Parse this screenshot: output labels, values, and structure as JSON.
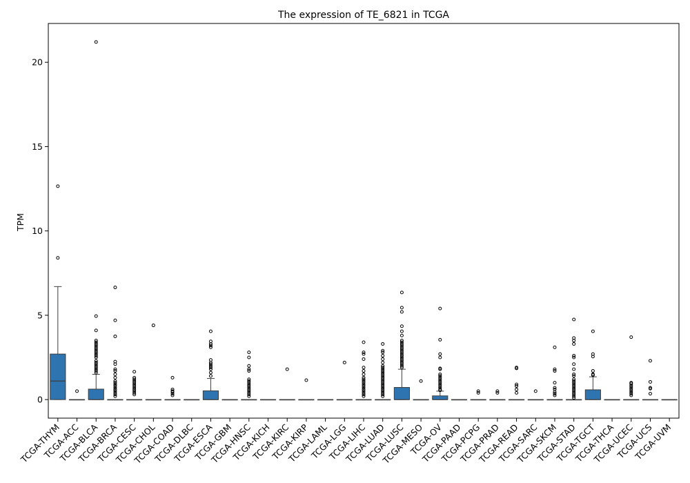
{
  "chart_data": {
    "type": "box",
    "title": "The expression of TE_6821 in TCGA",
    "xlabel": "",
    "ylabel": "TPM",
    "ylim": [
      -1.1,
      22.3
    ],
    "yticks": [
      0,
      5,
      10,
      15,
      20
    ],
    "grid": false,
    "legend": "none",
    "box_color": "#2e74b0",
    "categories": [
      "TCGA-THYM",
      "TCGA-ACC",
      "TCGA-BLCA",
      "TCGA-BRCA",
      "TCGA-CESC",
      "TCGA-CHOL",
      "TCGA-COAD",
      "TCGA-DLBC",
      "TCGA-ESCA",
      "TCGA-GBM",
      "TCGA-HNSC",
      "TCGA-KICH",
      "TCGA-KIRC",
      "TCGA-KIRP",
      "TCGA-LAML",
      "TCGA-LGG",
      "TCGA-LIHC",
      "TCGA-LUAD",
      "TCGA-LUSC",
      "TCGA-MESO",
      "TCGA-OV",
      "TCGA-PAAD",
      "TCGA-PCPG",
      "TCGA-PRAD",
      "TCGA-READ",
      "TCGA-SARC",
      "TCGA-SKCM",
      "TCGA-STAD",
      "TCGA-TGCT",
      "TCGA-THCA",
      "TCGA-UCEC",
      "TCGA-UCS",
      "TCGA-UVM"
    ],
    "boxes": [
      {
        "q1": 0,
        "median": 1.1,
        "q3": 2.7,
        "whislo": 0,
        "whishi": 6.7,
        "fliers": [
          8.4,
          12.65
        ]
      },
      {
        "q1": 0,
        "median": 0,
        "q3": 0,
        "whislo": 0,
        "whishi": 0,
        "fliers": [
          0.5
        ]
      },
      {
        "q1": 0,
        "median": 0,
        "q3": 0.62,
        "whislo": 0,
        "whishi": 1.5,
        "fliers": [
          1.6,
          1.7,
          1.8,
          1.9,
          2.0,
          2.1,
          2.2,
          2.3,
          2.5,
          2.6,
          2.7,
          2.8,
          2.9,
          3.0,
          3.1,
          3.2,
          3.3,
          3.4,
          3.5,
          4.1,
          4.95,
          21.2
        ]
      },
      {
        "q1": 0,
        "median": 0,
        "q3": 0,
        "whislo": 0,
        "whishi": 0,
        "fliers": [
          0.2,
          0.3,
          0.4,
          0.5,
          0.6,
          0.7,
          0.8,
          0.9,
          1.0,
          1.1,
          1.3,
          1.5,
          1.7,
          1.8,
          2.1,
          2.25,
          3.75,
          4.7,
          6.65
        ]
      },
      {
        "q1": 0,
        "median": 0,
        "q3": 0,
        "whislo": 0,
        "whishi": 0,
        "fliers": [
          0.3,
          0.4,
          0.5,
          0.6,
          0.7,
          0.8,
          0.9,
          1.0,
          1.1,
          1.2,
          1.3,
          1.65
        ]
      },
      {
        "q1": 0,
        "median": 0,
        "q3": 0,
        "whislo": 0,
        "whishi": 0,
        "fliers": [
          4.4
        ]
      },
      {
        "q1": 0,
        "median": 0,
        "q3": 0,
        "whislo": 0,
        "whishi": 0,
        "fliers": [
          0.25,
          0.35,
          0.45,
          0.5,
          0.6,
          1.3
        ]
      },
      {
        "q1": 0,
        "median": 0,
        "q3": 0,
        "whislo": 0,
        "whishi": 0,
        "fliers": []
      },
      {
        "q1": 0,
        "median": 0,
        "q3": 0.52,
        "whislo": 0,
        "whishi": 1.25,
        "fliers": [
          1.4,
          1.6,
          1.8,
          1.9,
          2.0,
          2.1,
          2.2,
          2.35,
          3.1,
          3.2,
          3.3,
          3.45,
          4.05
        ]
      },
      {
        "q1": 0,
        "median": 0,
        "q3": 0,
        "whislo": 0,
        "whishi": 0,
        "fliers": []
      },
      {
        "q1": 0,
        "median": 0,
        "q3": 0,
        "whislo": 0,
        "whishi": 0,
        "fliers": [
          0.2,
          0.3,
          0.4,
          0.5,
          0.6,
          0.7,
          0.8,
          0.9,
          1.0,
          1.1,
          1.2,
          1.7,
          1.8,
          2.0,
          2.5,
          2.8
        ]
      },
      {
        "q1": 0,
        "median": 0,
        "q3": 0,
        "whislo": 0,
        "whishi": 0,
        "fliers": []
      },
      {
        "q1": 0,
        "median": 0,
        "q3": 0,
        "whislo": 0,
        "whishi": 0,
        "fliers": [
          1.8
        ]
      },
      {
        "q1": 0,
        "median": 0,
        "q3": 0,
        "whislo": 0,
        "whishi": 0,
        "fliers": [
          1.15
        ]
      },
      {
        "q1": 0,
        "median": 0,
        "q3": 0,
        "whislo": 0,
        "whishi": 0,
        "fliers": []
      },
      {
        "q1": 0,
        "median": 0,
        "q3": 0,
        "whislo": 0,
        "whishi": 0,
        "fliers": [
          2.2
        ]
      },
      {
        "q1": 0,
        "median": 0,
        "q3": 0,
        "whislo": 0,
        "whishi": 0,
        "fliers": [
          0.2,
          0.3,
          0.4,
          0.5,
          0.6,
          0.7,
          0.8,
          0.9,
          1.0,
          1.1,
          1.2,
          1.3,
          1.5,
          1.7,
          1.9,
          2.4,
          2.7,
          2.8,
          3.4
        ]
      },
      {
        "q1": 0,
        "median": 0,
        "q3": 0,
        "whislo": 0,
        "whishi": 0,
        "fliers": [
          0.2,
          0.3,
          0.4,
          0.5,
          0.6,
          0.7,
          0.8,
          0.9,
          1.0,
          1.1,
          1.2,
          1.3,
          1.4,
          1.5,
          1.6,
          1.7,
          1.8,
          1.9,
          2.0,
          2.2,
          2.4,
          2.6,
          2.8,
          2.9,
          3.3
        ]
      },
      {
        "q1": 0,
        "median": 0,
        "q3": 0.72,
        "whislo": 0,
        "whishi": 1.8,
        "fliers": [
          1.9,
          2.0,
          2.1,
          2.2,
          2.3,
          2.4,
          2.5,
          2.6,
          2.7,
          2.8,
          2.9,
          3.0,
          3.1,
          3.2,
          3.3,
          3.4,
          3.5,
          3.8,
          4.05,
          4.35,
          5.2,
          5.45,
          6.35
        ]
      },
      {
        "q1": 0,
        "median": 0,
        "q3": 0,
        "whislo": 0,
        "whishi": 0,
        "fliers": [
          1.1
        ]
      },
      {
        "q1": 0,
        "median": 0,
        "q3": 0.22,
        "whislo": 0,
        "whishi": 0.5,
        "fliers": [
          0.55,
          0.6,
          0.7,
          0.8,
          0.9,
          1.0,
          1.1,
          1.2,
          1.3,
          1.4,
          1.5,
          1.8,
          1.85,
          2.5,
          2.7,
          3.55,
          5.4
        ]
      },
      {
        "q1": 0,
        "median": 0,
        "q3": 0,
        "whislo": 0,
        "whishi": 0,
        "fliers": []
      },
      {
        "q1": 0,
        "median": 0,
        "q3": 0,
        "whislo": 0,
        "whishi": 0,
        "fliers": [
          0.4,
          0.5
        ]
      },
      {
        "q1": 0,
        "median": 0,
        "q3": 0,
        "whislo": 0,
        "whishi": 0,
        "fliers": [
          0.4,
          0.5
        ]
      },
      {
        "q1": 0,
        "median": 0,
        "q3": 0,
        "whislo": 0,
        "whishi": 0,
        "fliers": [
          0.4,
          0.6,
          0.8,
          0.9,
          1.85,
          1.9
        ]
      },
      {
        "q1": 0,
        "median": 0,
        "q3": 0,
        "whislo": 0,
        "whishi": 0,
        "fliers": [
          0.5
        ]
      },
      {
        "q1": 0,
        "median": 0,
        "q3": 0,
        "whislo": 0,
        "whishi": 0,
        "fliers": [
          0.25,
          0.35,
          0.45,
          0.6,
          0.7,
          1.0,
          1.7,
          1.8,
          3.1
        ]
      },
      {
        "q1": 0,
        "median": 0,
        "q3": 0,
        "whislo": 0,
        "whishi": 0,
        "fliers": [
          0.1,
          0.2,
          0.3,
          0.4,
          0.5,
          0.6,
          0.7,
          0.8,
          0.9,
          1.0,
          1.1,
          1.2,
          1.4,
          1.5,
          1.8,
          2.1,
          2.5,
          2.6,
          3.3,
          3.5,
          3.65,
          4.75
        ]
      },
      {
        "q1": 0,
        "median": 0,
        "q3": 0.58,
        "whislo": 0,
        "whishi": 1.35,
        "fliers": [
          1.45,
          1.5,
          1.7,
          2.55,
          2.7,
          4.05
        ]
      },
      {
        "q1": 0,
        "median": 0,
        "q3": 0,
        "whislo": 0,
        "whishi": 0,
        "fliers": []
      },
      {
        "q1": 0,
        "median": 0,
        "q3": 0,
        "whislo": 0,
        "whishi": 0,
        "fliers": [
          0.25,
          0.35,
          0.45,
          0.55,
          0.65,
          0.75,
          0.85,
          0.95,
          1.0,
          3.7
        ]
      },
      {
        "q1": 0,
        "median": 0,
        "q3": 0,
        "whislo": 0,
        "whishi": 0,
        "fliers": [
          0.35,
          0.65,
          0.7,
          1.05,
          2.3
        ]
      },
      {
        "q1": 0,
        "median": 0,
        "q3": 0,
        "whislo": 0,
        "whishi": 0,
        "fliers": []
      }
    ]
  }
}
